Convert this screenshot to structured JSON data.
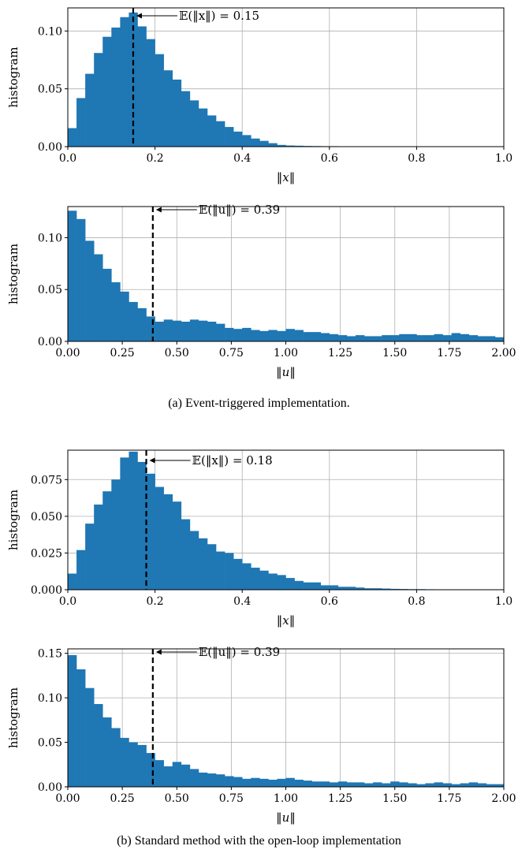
{
  "captions": {
    "a": "(a) Event-triggered implementation.",
    "b": "(b) Standard method with the open-loop implementation"
  },
  "colors": {
    "bar": "#1f77b4",
    "grid": "#b0b0b0",
    "mean_line": "#000000"
  },
  "chart_data": [
    {
      "type": "bar",
      "title": "",
      "ylabel": "histogram",
      "xlabel_math": "‖x‖",
      "xlim": [
        0,
        1.0
      ],
      "ylim": [
        0,
        0.12
      ],
      "xticks": [
        "0.0",
        "0.2",
        "0.4",
        "0.6",
        "0.8",
        "1.0"
      ],
      "yticks": [
        "0.00",
        "0.05",
        "0.10"
      ],
      "grid": true,
      "bin_width": 0.02,
      "values": [
        0.016,
        0.042,
        0.063,
        0.081,
        0.095,
        0.103,
        0.112,
        0.116,
        0.104,
        0.093,
        0.08,
        0.066,
        0.058,
        0.048,
        0.04,
        0.033,
        0.027,
        0.022,
        0.017,
        0.013,
        0.01,
        0.007,
        0.005,
        0.003,
        0.0015,
        0.001,
        0.0008,
        0.0006,
        0.0005,
        0.0004,
        0.0004,
        0.0003,
        0.0002,
        0.0002,
        0.0001,
        0.0001,
        0.0001,
        0.0001,
        0.0001,
        0.0001,
        0,
        0,
        0,
        0,
        0,
        0,
        0,
        0,
        0,
        0
      ],
      "mean_value": 0.15,
      "annotation": "𝔼(‖x‖) = 0.15"
    },
    {
      "type": "bar",
      "title": "",
      "ylabel": "histogram",
      "xlabel_math": "‖u‖",
      "xlim": [
        0,
        2.0
      ],
      "ylim": [
        0,
        0.13
      ],
      "xticks": [
        "0.00",
        "0.25",
        "0.50",
        "0.75",
        "1.00",
        "1.25",
        "1.50",
        "1.75",
        "2.00"
      ],
      "yticks": [
        "0.00",
        "0.05",
        "0.10"
      ],
      "grid": true,
      "bin_width": 0.04,
      "values": [
        0.126,
        0.118,
        0.097,
        0.084,
        0.07,
        0.057,
        0.048,
        0.038,
        0.032,
        0.024,
        0.019,
        0.021,
        0.02,
        0.019,
        0.021,
        0.02,
        0.019,
        0.017,
        0.013,
        0.012,
        0.013,
        0.011,
        0.01,
        0.011,
        0.01,
        0.012,
        0.011,
        0.009,
        0.009,
        0.008,
        0.007,
        0.006,
        0.005,
        0.006,
        0.005,
        0.005,
        0.006,
        0.006,
        0.007,
        0.007,
        0.006,
        0.006,
        0.007,
        0.006,
        0.008,
        0.007,
        0.006,
        0.005,
        0.005,
        0.004
      ],
      "mean_value": 0.39,
      "annotation": "𝔼(‖u‖) = 0.39"
    },
    {
      "type": "bar",
      "title": "",
      "ylabel": "histogram",
      "xlabel_math": "‖x‖",
      "xlim": [
        0,
        1.0
      ],
      "ylim": [
        0,
        0.095
      ],
      "xticks": [
        "0.0",
        "0.2",
        "0.4",
        "0.6",
        "0.8",
        "1.0"
      ],
      "yticks": [
        "0.000",
        "0.025",
        "0.050",
        "0.075"
      ],
      "grid": true,
      "bin_width": 0.02,
      "values": [
        0.011,
        0.027,
        0.045,
        0.058,
        0.067,
        0.075,
        0.09,
        0.094,
        0.087,
        0.079,
        0.07,
        0.065,
        0.06,
        0.048,
        0.04,
        0.035,
        0.031,
        0.026,
        0.025,
        0.021,
        0.018,
        0.015,
        0.013,
        0.011,
        0.01,
        0.008,
        0.006,
        0.005,
        0.005,
        0.003,
        0.003,
        0.002,
        0.002,
        0.0015,
        0.001,
        0.001,
        0.0008,
        0.0006,
        0.0005,
        0.0004,
        0.0004,
        0.0003,
        0.0002,
        0.0002,
        0.0002,
        0.0001,
        0.0001,
        0.0001,
        0,
        0
      ],
      "mean_value": 0.18,
      "annotation": "𝔼(‖x‖) = 0.18"
    },
    {
      "type": "bar",
      "title": "",
      "ylabel": "histogram",
      "xlabel_math": "‖u‖",
      "xlim": [
        0,
        2.0
      ],
      "ylim": [
        0,
        0.155
      ],
      "xticks": [
        "0.00",
        "0.25",
        "0.50",
        "0.75",
        "1.00",
        "1.25",
        "1.50",
        "1.75",
        "2.00"
      ],
      "yticks": [
        "0.00",
        "0.05",
        "0.10",
        "0.15"
      ],
      "grid": true,
      "bin_width": 0.04,
      "values": [
        0.148,
        0.132,
        0.111,
        0.093,
        0.078,
        0.066,
        0.055,
        0.05,
        0.047,
        0.038,
        0.03,
        0.023,
        0.028,
        0.025,
        0.02,
        0.016,
        0.015,
        0.014,
        0.012,
        0.011,
        0.009,
        0.01,
        0.009,
        0.008,
        0.009,
        0.01,
        0.008,
        0.007,
        0.006,
        0.006,
        0.005,
        0.006,
        0.005,
        0.005,
        0.004,
        0.005,
        0.004,
        0.006,
        0.005,
        0.004,
        0.003,
        0.004,
        0.005,
        0.004,
        0.003,
        0.004,
        0.005,
        0.004,
        0.003,
        0.003
      ],
      "mean_value": 0.39,
      "annotation": "𝔼(‖u‖) = 0.39"
    }
  ]
}
